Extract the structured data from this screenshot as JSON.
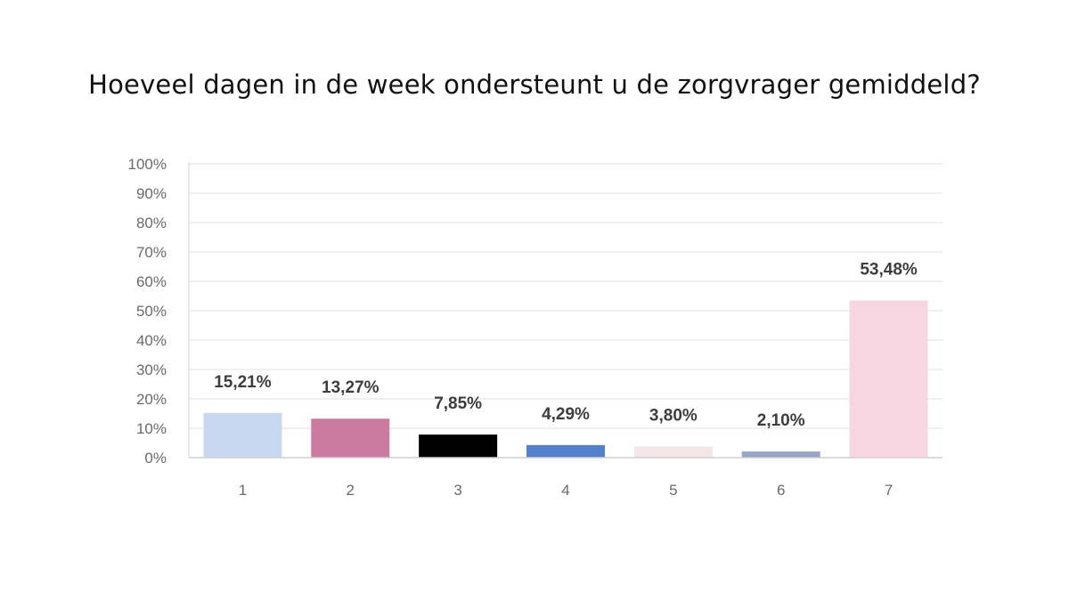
{
  "chart_data": {
    "type": "bar",
    "title": "Hoeveel dagen in de week ondersteunt u de zorgvrager gemiddeld?",
    "xlabel": "",
    "ylabel": "",
    "categories": [
      "1",
      "2",
      "3",
      "4",
      "5",
      "6",
      "7"
    ],
    "values": [
      15.21,
      13.27,
      7.85,
      4.29,
      3.8,
      2.1,
      53.48
    ],
    "value_labels": [
      "15,21%",
      "13,27%",
      "7,85%",
      "4,29%",
      "3,80%",
      "2,10%",
      "53,48%"
    ],
    "bar_colors": [
      "#c9d8f1",
      "#cd7aa0",
      "#000000",
      "#5481cc",
      "#f3e6e8",
      "#97a5c6",
      "#f7d6e1"
    ],
    "ylim": [
      0,
      100
    ],
    "y_ticks": [
      0,
      10,
      20,
      30,
      40,
      50,
      60,
      70,
      80,
      90,
      100
    ],
    "y_tick_labels": [
      "0%",
      "10%",
      "20%",
      "30%",
      "40%",
      "50%",
      "60%",
      "70%",
      "80%",
      "90%",
      "100%"
    ],
    "grid": true,
    "legend": "none"
  }
}
